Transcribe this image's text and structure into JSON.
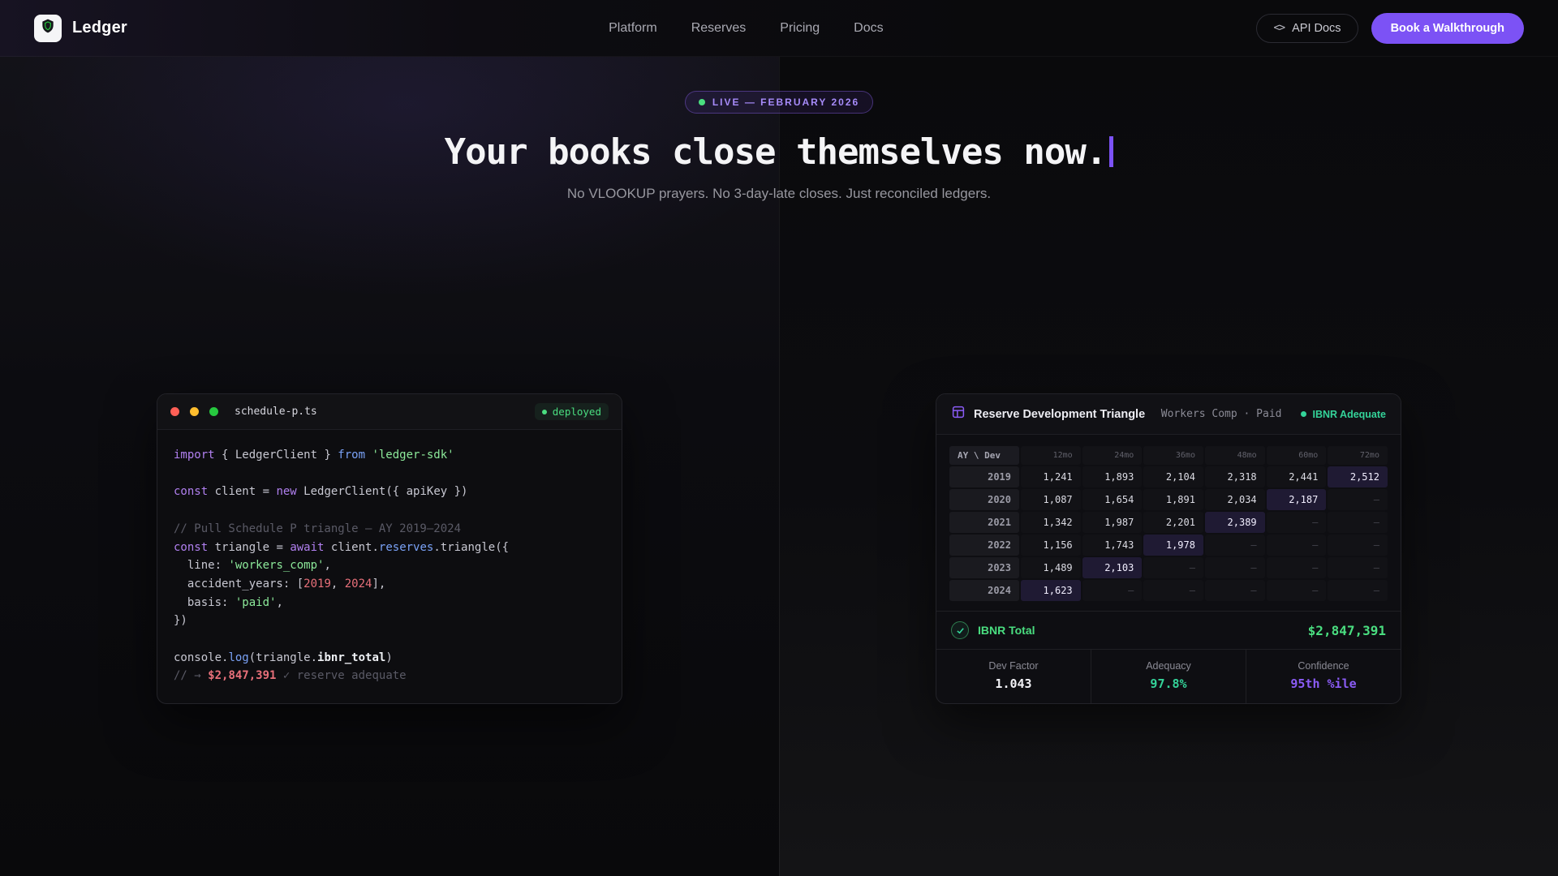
{
  "nav": {
    "brand": "Ledger",
    "links": [
      {
        "label": "Platform"
      },
      {
        "label": "Reserves"
      },
      {
        "label": "Pricing"
      },
      {
        "label": "Docs"
      }
    ],
    "api_docs": {
      "icon": "<>",
      "label": "API Docs"
    },
    "cta_label": "Book a Walkthrough"
  },
  "hero": {
    "badge_label": "LIVE — FEBRUARY 2026",
    "title": "Your books close themselves now.",
    "subtitle": "No VLOOKUP prayers. No 3-day-late closes. Just reconciled ledgers."
  },
  "code_editor": {
    "filename": "schedule-p.ts",
    "status": "deployed",
    "lines": [
      [
        {
          "c": "kw",
          "t": "import"
        },
        {
          "c": "pl",
          "t": " { LedgerClient } "
        },
        {
          "c": "kw2",
          "t": "from"
        },
        {
          "c": "str",
          "t": " 'ledger-sdk'"
        }
      ],
      [],
      [
        {
          "c": "kw",
          "t": "const"
        },
        {
          "c": "pl",
          "t": " client = "
        },
        {
          "c": "kw",
          "t": "new"
        },
        {
          "c": "pl",
          "t": " LedgerClient({ apiKey })"
        }
      ],
      [],
      [
        {
          "c": "cmt",
          "t": "// Pull Schedule P triangle — AY 2019–2024"
        }
      ],
      [
        {
          "c": "kw",
          "t": "const"
        },
        {
          "c": "pl",
          "t": " triangle = "
        },
        {
          "c": "kw",
          "t": "await"
        },
        {
          "c": "pl",
          "t": " client."
        },
        {
          "c": "fn",
          "t": "reserves"
        },
        {
          "c": "pl",
          "t": ".triangle({"
        }
      ],
      [
        {
          "c": "pl",
          "t": "  line: "
        },
        {
          "c": "str",
          "t": "'workers_comp'"
        },
        {
          "c": "pl",
          "t": ","
        }
      ],
      [
        {
          "c": "pl",
          "t": "  accident_years: ["
        },
        {
          "c": "num",
          "t": "2019"
        },
        {
          "c": "pl",
          "t": ", "
        },
        {
          "c": "num",
          "t": "2024"
        },
        {
          "c": "pl",
          "t": "],"
        }
      ],
      [
        {
          "c": "pl",
          "t": "  basis: "
        },
        {
          "c": "str",
          "t": "'paid'"
        },
        {
          "c": "pl",
          "t": ","
        }
      ],
      [
        {
          "c": "pl",
          "t": "})"
        }
      ],
      [],
      [
        {
          "c": "pl",
          "t": "console."
        },
        {
          "c": "fn",
          "t": "log"
        },
        {
          "c": "pl",
          "t": "(triangle."
        },
        {
          "c": "emph",
          "t": "ibnr_total"
        },
        {
          "c": "pl",
          "t": ")"
        }
      ],
      [
        {
          "c": "cmt",
          "t": "// → "
        },
        {
          "c": "numb",
          "t": "$2,847,391"
        },
        {
          "c": "cmt",
          "t": " ✓ reserve adequate"
        }
      ]
    ]
  },
  "triangle": {
    "title": "Reserve Development Triangle",
    "meta": "Workers Comp · Paid",
    "status": "IBNR Adequate",
    "corner_label": "AY \\ Dev",
    "dev_columns": [
      "12mo",
      "24mo",
      "36mo",
      "48mo",
      "60mo",
      "72mo"
    ],
    "empty_cell": "–",
    "rows": [
      {
        "year": "2019",
        "values": [
          "1,241",
          "1,893",
          "2,104",
          "2,318",
          "2,441",
          "2,512"
        ],
        "highlight": 5
      },
      {
        "year": "2020",
        "values": [
          "1,087",
          "1,654",
          "1,891",
          "2,034",
          "2,187",
          null
        ],
        "highlight": 4
      },
      {
        "year": "2021",
        "values": [
          "1,342",
          "1,987",
          "2,201",
          "2,389",
          null,
          null
        ],
        "highlight": 3
      },
      {
        "year": "2022",
        "values": [
          "1,156",
          "1,743",
          "1,978",
          null,
          null,
          null
        ],
        "highlight": 2
      },
      {
        "year": "2023",
        "values": [
          "1,489",
          "2,103",
          null,
          null,
          null,
          null
        ],
        "highlight": 1
      },
      {
        "year": "2024",
        "values": [
          "1,623",
          null,
          null,
          null,
          null,
          null
        ],
        "highlight": 0
      }
    ],
    "ibnr": {
      "label": "IBNR Total",
      "value": "$2,847,391"
    },
    "stats": [
      {
        "label": "Dev Factor",
        "value": "1.043",
        "color": "#f2f2f6"
      },
      {
        "label": "Adequacy",
        "value": "97.8%",
        "color": "#34d399"
      },
      {
        "label": "Confidence",
        "value": "95th %ile",
        "color": "#8b5cf6"
      }
    ]
  },
  "colors": {
    "accent_purple": "#7c52f5",
    "success_green": "#4ade80",
    "status_green": "#34d399",
    "traffic_red": "#ff5f56",
    "traffic_yellow": "#ffbd2e",
    "traffic_green": "#27c93f"
  }
}
